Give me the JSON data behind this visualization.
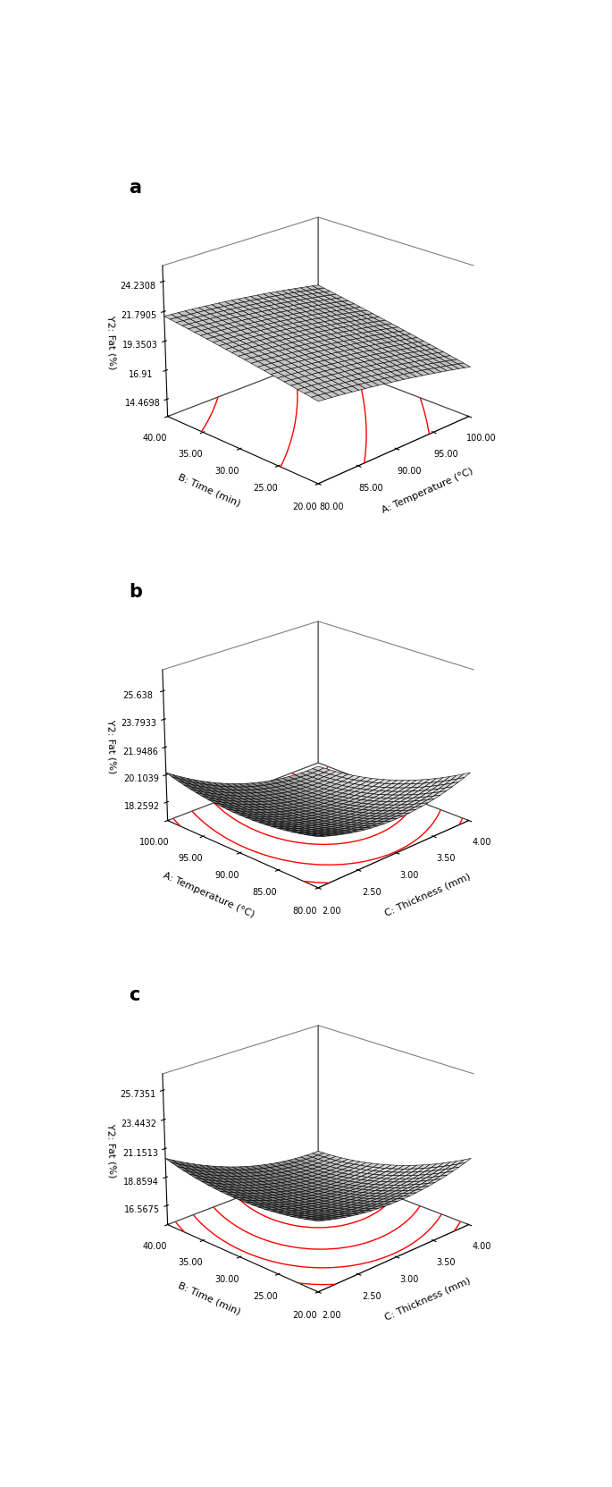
{
  "plot_a": {
    "label": "a",
    "xlabel": "A: Temperature (°C)",
    "ylabel": "B: Time (min)",
    "zlabel": "Y2: Fat (%)",
    "x_range": [
      80,
      100
    ],
    "y_range": [
      20,
      40
    ],
    "x_ticks": [
      80.0,
      85.0,
      90.0,
      95.0,
      100.0
    ],
    "y_ticks": [
      20.0,
      25.0,
      30.0,
      35.0,
      40.0
    ],
    "z_ticks": [
      14.4698,
      16.91,
      19.3503,
      21.7905,
      24.2308
    ],
    "z_tick_labels": [
      "14.4698",
      "16.91",
      "19.3503",
      "21.7905",
      "24.2308"
    ],
    "zlim": [
      13.0,
      25.5
    ],
    "elev": 22,
    "azim": 225
  },
  "plot_b": {
    "label": "b",
    "xlabel": "C: Thickness (mm)",
    "ylabel": "A: Temperature (°C)",
    "zlabel": "Y2: Fat (%)",
    "x_range": [
      2.0,
      4.0
    ],
    "y_range": [
      80,
      100
    ],
    "x_ticks": [
      2.0,
      2.5,
      3.0,
      3.5,
      4.0
    ],
    "y_ticks": [
      80.0,
      85.0,
      90.0,
      95.0,
      100.0
    ],
    "z_ticks": [
      18.2592,
      20.1039,
      21.9486,
      23.7933,
      25.638
    ],
    "z_tick_labels": [
      "18.2592",
      "20.1039",
      "21.9486",
      "23.7933",
      "25.638"
    ],
    "zlim": [
      17.0,
      27.0
    ],
    "elev": 22,
    "azim": 225
  },
  "plot_c": {
    "label": "c",
    "xlabel": "C: Thickness (mm)",
    "ylabel": "B: Time (min)",
    "zlabel": "Y2: Fat (%)",
    "x_range": [
      2.0,
      4.0
    ],
    "y_range": [
      20,
      40
    ],
    "x_ticks": [
      2.0,
      2.5,
      3.0,
      3.5,
      4.0
    ],
    "y_ticks": [
      20.0,
      25.0,
      30.0,
      35.0,
      40.0
    ],
    "z_ticks": [
      16.5675,
      18.8594,
      21.1513,
      23.4432,
      25.7351
    ],
    "z_tick_labels": [
      "16.5675",
      "18.8594",
      "21.1513",
      "23.4432",
      "25.7351"
    ],
    "zlim": [
      15.0,
      27.0
    ],
    "elev": 22,
    "azim": 225
  },
  "contour_color": "red",
  "background_color": "white",
  "fig_width": 6.85,
  "fig_height": 16.63,
  "dpi": 100
}
